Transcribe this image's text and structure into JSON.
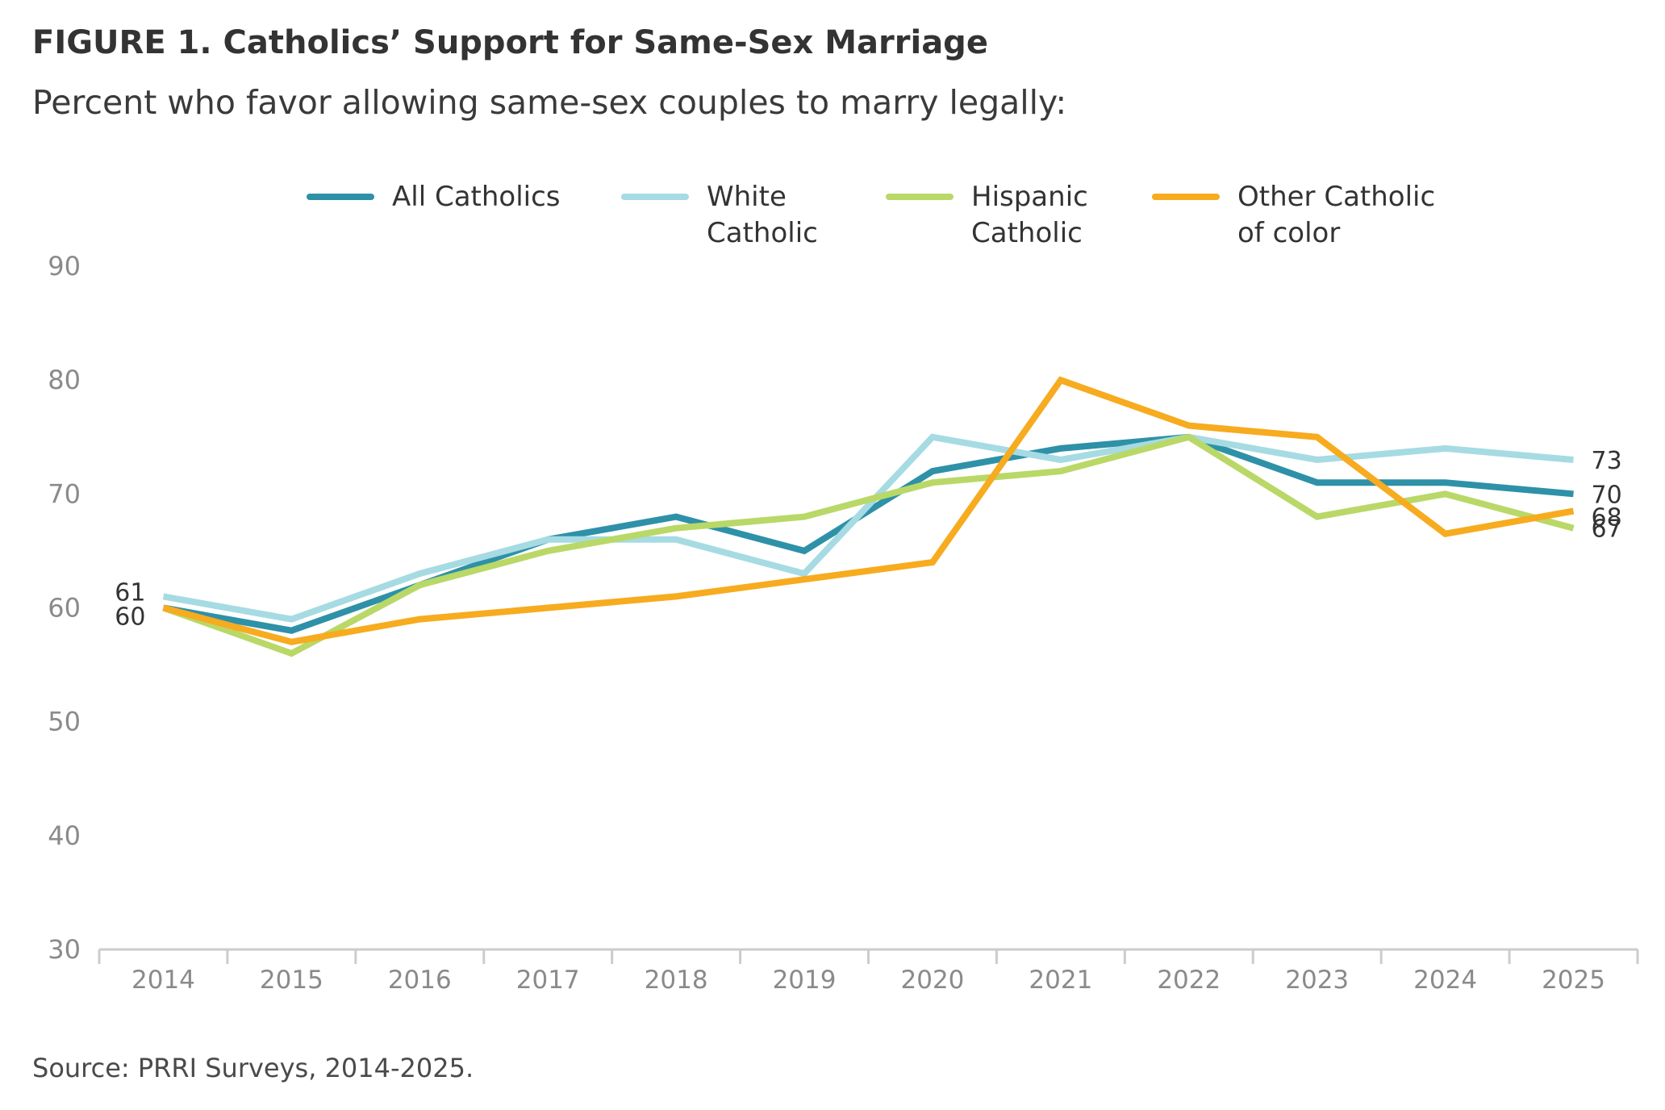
{
  "header": {
    "title": "FIGURE 1. Catholics’ Support for Same-Sex Marriage",
    "subtitle": "Percent who favor allowing same-sex couples to marry legally:"
  },
  "footer": {
    "source": "Source: PRRI Surveys, 2014-2025."
  },
  "chart_data": {
    "type": "line",
    "title": "FIGURE 1. Catholics’ Support for Same-Sex Marriage",
    "subtitle": "Percent who favor allowing same-sex couples to marry legally:",
    "xlabel": "",
    "ylabel": "",
    "x": [
      "2014",
      "2015",
      "2016",
      "2017",
      "2018",
      "2019",
      "2020",
      "2021",
      "2022",
      "2023",
      "2024",
      "2025"
    ],
    "ylim": [
      30,
      90
    ],
    "yticks": [
      30,
      40,
      50,
      60,
      70,
      80,
      90
    ],
    "grid": false,
    "legend_position": "top",
    "series": [
      {
        "name": "All Catholics",
        "color": "#2e91a8",
        "values": [
          60,
          58,
          62,
          66,
          68,
          65,
          72,
          74,
          75,
          71,
          71,
          70
        ]
      },
      {
        "name": "White\nCatholic",
        "color": "#a6dbe3",
        "values": [
          61,
          59,
          63,
          66,
          66,
          63,
          75,
          73,
          75,
          73,
          74,
          73
        ]
      },
      {
        "name": "Hispanic\nCatholic",
        "color": "#b9d867",
        "values": [
          60,
          56,
          62,
          65,
          67,
          68,
          71,
          72,
          75,
          68,
          70,
          67
        ]
      },
      {
        "name": "Other Catholic\nof color",
        "color": "#f7ab1f",
        "values": [
          60,
          57,
          59,
          60,
          61,
          62.5,
          64,
          80,
          76,
          75,
          66.5,
          68.5
        ]
      }
    ],
    "annotations": [
      {
        "text": "61",
        "x": "2014",
        "y": 61
      },
      {
        "text": "60",
        "x": "2014",
        "y": 60
      },
      {
        "text": "73",
        "x": "2025",
        "y": 73
      },
      {
        "text": "70",
        "x": "2025",
        "y": 70
      },
      {
        "text": "68",
        "x": "2025",
        "y": 68
      },
      {
        "text": "67",
        "x": "2025",
        "y": 67
      }
    ]
  }
}
